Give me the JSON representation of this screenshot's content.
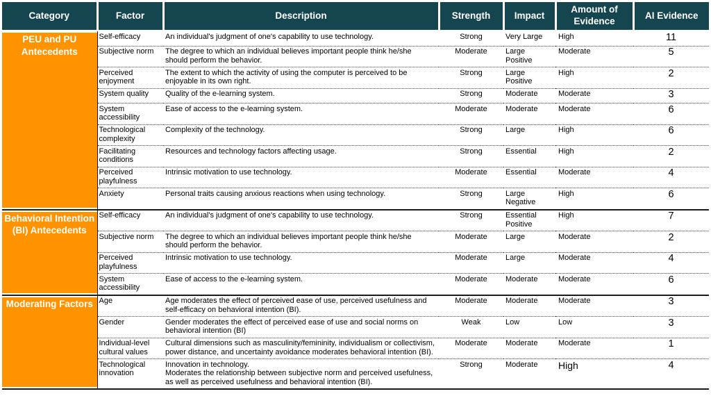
{
  "colors": {
    "header_bg": "#15464F",
    "header_text": "#FFFFFF",
    "category_bg": "#FF9301",
    "category_text": "#FFFFFF",
    "section_line": "#1a1a1a"
  },
  "table": {
    "columns": [
      {
        "label": "Category"
      },
      {
        "label": "Factor"
      },
      {
        "label": "Description"
      },
      {
        "label": "Strength"
      },
      {
        "label": "Impact"
      },
      {
        "label": "Amount of Evidence"
      },
      {
        "label": "AI Evidence"
      }
    ],
    "sections": [
      {
        "label": "PEU and PU Antecedents",
        "rows": [
          {
            "factor": "Self-efficacy",
            "description": "An individual's judgment of one's capability to use technology.",
            "strength": "Strong",
            "impact": "Very Large",
            "evidence": "High",
            "ai": "11"
          },
          {
            "factor": "Subjective norm",
            "description": "The degree to which an individual believes important people think he/she should perform the behavior.",
            "strength": "Moderate",
            "impact": "Large Positive",
            "evidence": "Moderate",
            "ai": "5"
          },
          {
            "factor": "Perceived enjoyment",
            "description": "The extent to which the activity of using the computer is perceived to be enjoyable in its own right.",
            "strength": "Strong",
            "impact": "Large Positive",
            "evidence": "High",
            "ai": "2"
          },
          {
            "factor": "System quality",
            "description": "Quality of the e-learning system.",
            "strength": "Strong",
            "impact": "Moderate",
            "evidence": "Moderate",
            "ai": "3"
          },
          {
            "factor": "System accessibility",
            "description": "Ease of access to the e-learning system.",
            "strength": "Moderate",
            "impact": "Moderate",
            "evidence": "Moderate",
            "ai": "6"
          },
          {
            "factor": "Technological complexity",
            "description": "Complexity of the technology.",
            "strength": "Strong",
            "impact": "Large",
            "evidence": "High",
            "ai": "6"
          },
          {
            "factor": "Facilitating conditions",
            "description": "Resources and technology factors affecting usage.",
            "strength": "Strong",
            "impact": "Essential",
            "evidence": "High",
            "ai": "2"
          },
          {
            "factor": "Perceived playfulness",
            "description": "Intrinsic motivation to use technology.",
            "strength": "Moderate",
            "impact": "Essential",
            "evidence": "Moderate",
            "ai": "4"
          },
          {
            "factor": "Anxiety",
            "description": "Personal traits causing anxious reactions when using technology.",
            "strength": "Strong",
            "impact": "Large Negative",
            "evidence": "High",
            "ai": "6"
          }
        ]
      },
      {
        "label": "Behavioral Intention (BI) Antecedents",
        "rows": [
          {
            "factor": "Self-efficacy",
            "description": "An individual's judgment of one's capability to use technology.",
            "strength": "Strong",
            "impact": "Essential Positive",
            "evidence": "High",
            "ai": "7"
          },
          {
            "factor": "Subjective norm",
            "description": "The degree to which an individual believes important people think he/she should perform the behavior.",
            "strength": "Moderate",
            "impact": "Large",
            "evidence": "Moderate",
            "ai": "2"
          },
          {
            "factor": "Perceived playfulness",
            "description": "Intrinsic motivation to use technology.",
            "strength": "Moderate",
            "impact": "Large",
            "evidence": "Moderate",
            "ai": "4"
          },
          {
            "factor": "System accessibility",
            "description": "Ease of access to the e-learning system.",
            "strength": "Moderate",
            "impact": "Moderate",
            "evidence": "Moderate",
            "ai": "6"
          }
        ]
      },
      {
        "label": "Moderating Factors",
        "rows": [
          {
            "factor": "Age",
            "description": " Age moderates the effect of perceived ease of use, perceived usefulness and self-efficacy on behavioral intention (BI).",
            "strength": "Moderate",
            "impact": "Moderate",
            "evidence": "Moderate",
            "ai": "3"
          },
          {
            "factor": "Gender",
            "description": "Gender moderates the effect of perceived ease of use and social norms on behavioral intention (BI)",
            "strength": "Weak",
            "impact": "Low",
            "evidence": "Low",
            "ai": "3"
          },
          {
            "factor": "Individual-level cultural values",
            "description": "Cultural dimensions such as masculinity/femininity, individualism or collectivism, power distance, and uncertainty avoidance moderates behavioral intention (BI).",
            "strength": "Moderate",
            "impact": "Moderate",
            "evidence": "Moderate",
            "ai": "1"
          },
          {
            "factor": "Technological innovation",
            "description": "Innovation in technology.\nModerates the relationship between subjective norm and perceived usefulness, as well as perceived usefulness and behavioral intention (BI).",
            "strength": "Strong",
            "impact": "Moderate",
            "evidence": "High",
            "evidence_large": true,
            "ai": "4"
          }
        ]
      }
    ]
  }
}
